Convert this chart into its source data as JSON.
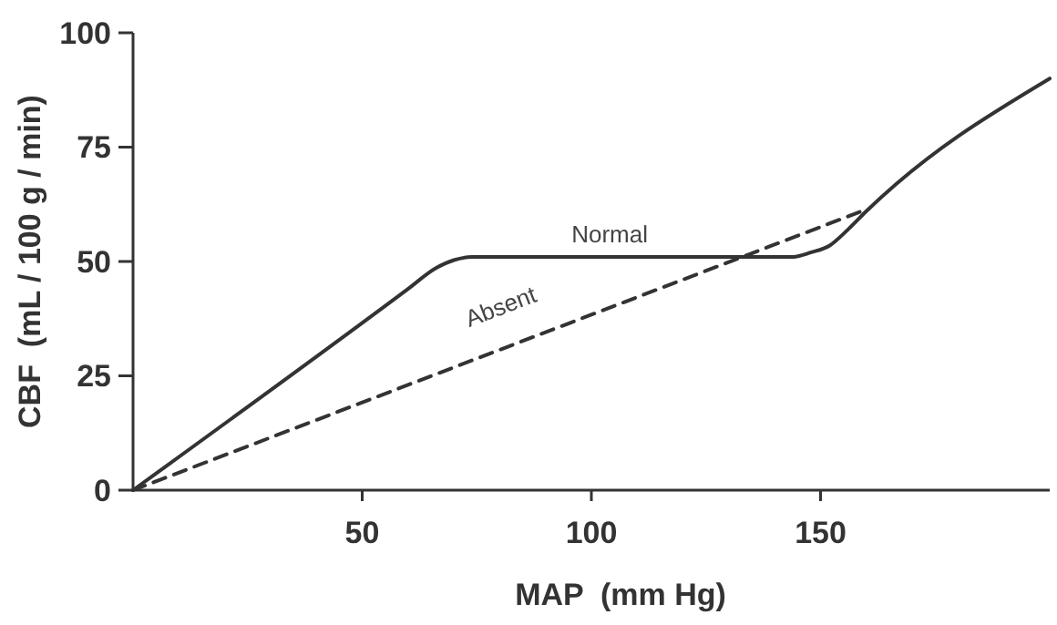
{
  "chart_data": {
    "type": "line",
    "xlabel": "MAP  (mm Hg)",
    "ylabel": "CBF  (mL / 100 g / min)",
    "xlim": [
      0,
      200
    ],
    "xticks": [
      50,
      100,
      150
    ],
    "ylim": [
      0,
      100
    ],
    "yticks": [
      0,
      25,
      50,
      75,
      100
    ],
    "grid": false,
    "marker": "none",
    "series": [
      {
        "name": "Normal",
        "color": "#333333",
        "line_style": "solid",
        "x": [
          0,
          60,
          66,
          70,
          74,
          80,
          140,
          144,
          148,
          152,
          156,
          160,
          200
        ],
        "values": [
          0,
          44,
          48.5,
          50.3,
          51,
          51,
          51,
          51,
          52,
          53.5,
          57,
          61,
          90
        ]
      },
      {
        "name": "Absent",
        "color": "#333333",
        "line_style": "dashed",
        "x": [
          0,
          159
        ],
        "values": [
          0,
          61
        ]
      }
    ]
  }
}
